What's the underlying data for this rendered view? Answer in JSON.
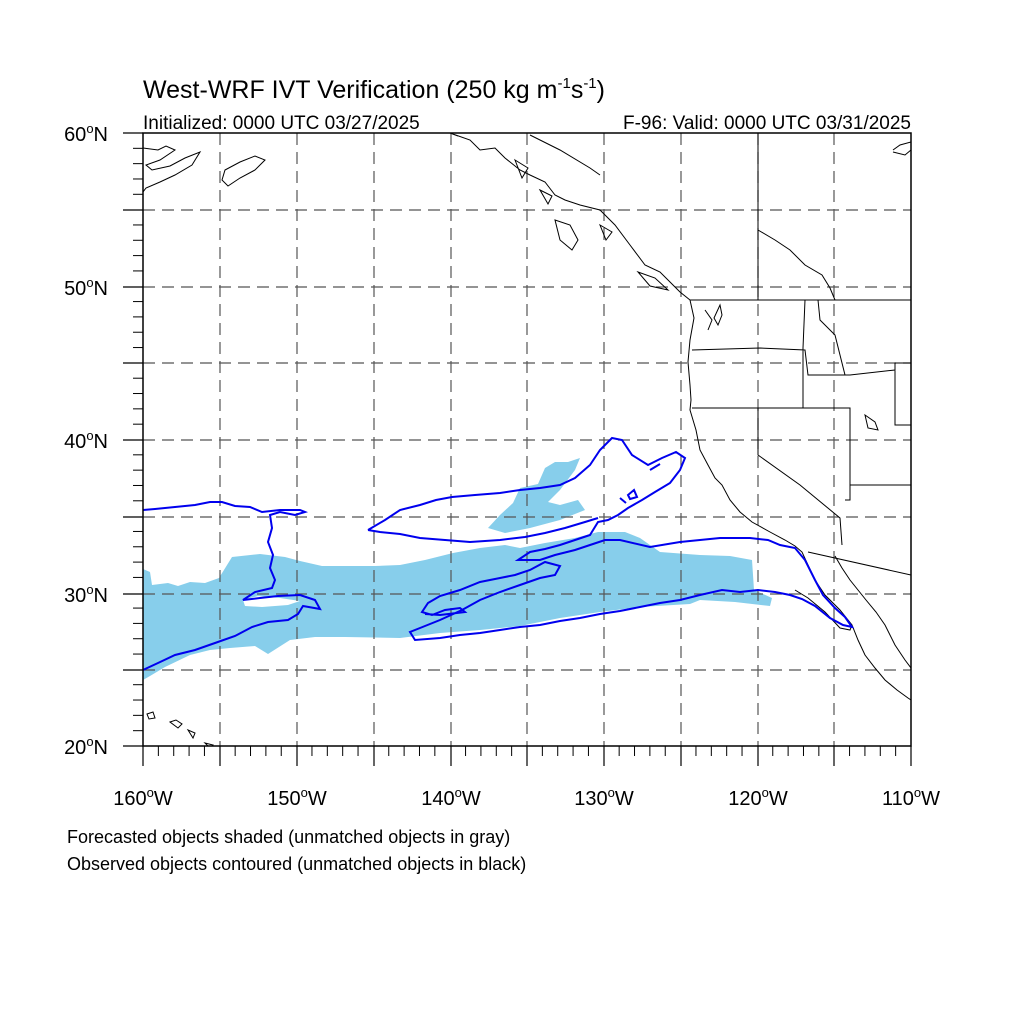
{
  "title": "West-WRF IVT Verification (250 kg m",
  "title_unit_exp1": "-1",
  "title_unit_s": "s",
  "title_unit_exp2": "-1",
  "title_close": ")",
  "initialized": "Initialized: 0000 UTC 03/27/2025",
  "valid": "F-96: Valid: 0000 UTC 03/31/2025",
  "lat_labels": [
    {
      "text": "60",
      "deg": "o",
      "hemi": "N",
      "lat": 60
    },
    {
      "text": "50",
      "deg": "o",
      "hemi": "N",
      "lat": 50
    },
    {
      "text": "40",
      "deg": "o",
      "hemi": "N",
      "lat": 40
    },
    {
      "text": "30",
      "deg": "o",
      "hemi": "N",
      "lat": 30
    },
    {
      "text": "20",
      "deg": "o",
      "hemi": "N",
      "lat": 20
    }
  ],
  "lon_labels": [
    {
      "text": "160",
      "deg": "o",
      "hemi": "W",
      "lon": -160
    },
    {
      "text": "150",
      "deg": "o",
      "hemi": "W",
      "lon": -150
    },
    {
      "text": "140",
      "deg": "o",
      "hemi": "W",
      "lon": -140
    },
    {
      "text": "130",
      "deg": "o",
      "hemi": "W",
      "lon": -130
    },
    {
      "text": "120",
      "deg": "o",
      "hemi": "W",
      "lon": -120
    },
    {
      "text": "110",
      "deg": "o",
      "hemi": "W",
      "lon": -110
    }
  ],
  "legend_line1": "Forecasted objects shaded (unmatched objects in gray)",
  "legend_line2": "Observed objects contoured (unmatched objects in black)",
  "colors": {
    "forecast_fill": "#87ceeb",
    "observed_contour": "#0000ee",
    "coastline": "#000000",
    "grid": "#555555"
  },
  "map_extent": {
    "lon_min": -160,
    "lon_max": -110,
    "lat_min": 20,
    "lat_max": 60
  }
}
